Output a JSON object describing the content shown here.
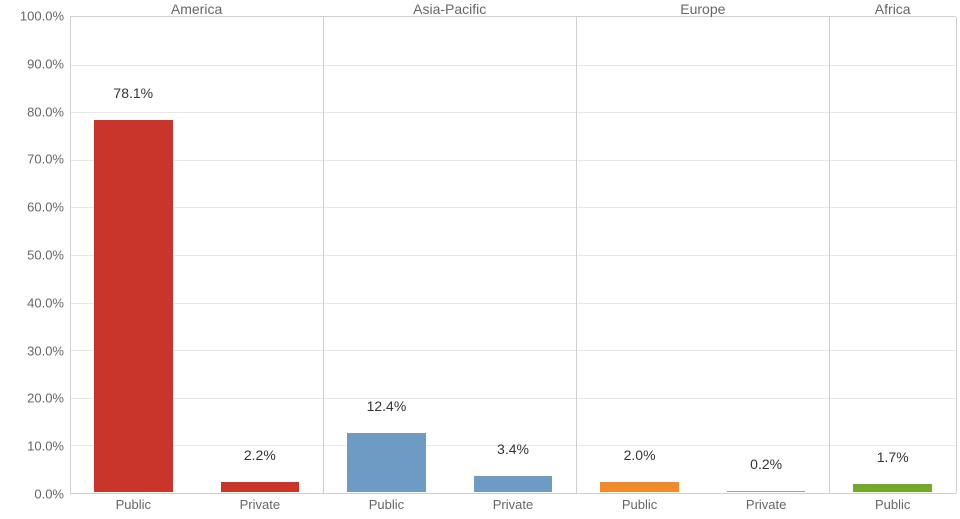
{
  "chart": {
    "type": "bar",
    "ylim": [
      0,
      100
    ],
    "ytick_step": 10,
    "y_tick_format_suffix": "%",
    "y_tick_format_decimals": 1,
    "panels": [
      {
        "title": "America",
        "weight": 2,
        "categories": [
          "Public",
          "Private"
        ]
      },
      {
        "title": "Asia-Pacific",
        "weight": 2,
        "categories": [
          "Public",
          "Private"
        ]
      },
      {
        "title": "Europe",
        "weight": 2,
        "categories": [
          "Public",
          "Private"
        ]
      },
      {
        "title": "Africa",
        "weight": 1,
        "categories": [
          "Public"
        ]
      }
    ],
    "bars": [
      {
        "panel": 0,
        "cat": 0,
        "value": 78.1,
        "label": "78.1%",
        "color": "#c9352a"
      },
      {
        "panel": 0,
        "cat": 1,
        "value": 2.2,
        "label": "2.2%",
        "color": "#c9352a"
      },
      {
        "panel": 1,
        "cat": 0,
        "value": 12.4,
        "label": "12.4%",
        "color": "#6d9bc3"
      },
      {
        "panel": 1,
        "cat": 1,
        "value": 3.4,
        "label": "3.4%",
        "color": "#6d9bc3"
      },
      {
        "panel": 2,
        "cat": 0,
        "value": 2.0,
        "label": "2.0%",
        "color": "#f08b2c"
      },
      {
        "panel": 2,
        "cat": 1,
        "value": 0.2,
        "label": "0.2%",
        "color": "#f08b2c"
      },
      {
        "panel": 3,
        "cat": 0,
        "value": 1.7,
        "label": "1.7%",
        "color": "#74a72a"
      }
    ],
    "bar_rel_width": 0.62,
    "grid_color": "#e8e8e8",
    "panel_sep_color": "#cfcfcf",
    "axis_text_color": "#666666",
    "label_text_color": "#333333",
    "label_fontsize": 14,
    "axis_fontsize": 13,
    "background_color": "#ffffff"
  }
}
